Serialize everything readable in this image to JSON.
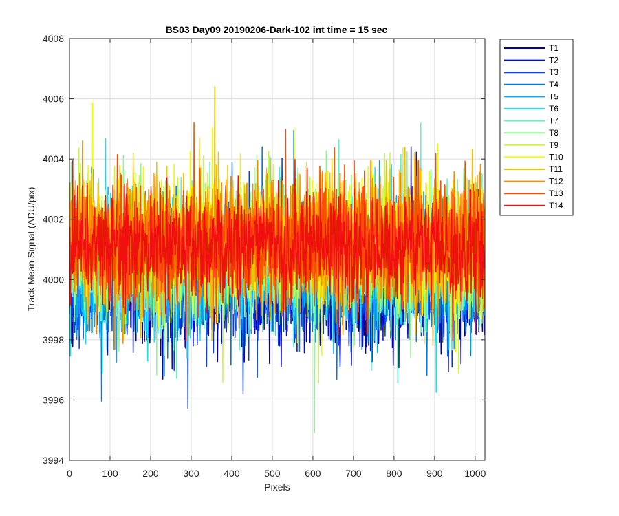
{
  "chart_data": {
    "type": "line",
    "title": "BS03 Day09 20190206-Dark-102 int time = 15 sec",
    "xlabel": "Pixels",
    "ylabel": "Track Mean Signal (ADU/pix)",
    "xlim": [
      0,
      1024
    ],
    "ylim": [
      3994,
      4008
    ],
    "xticks": [
      0,
      100,
      200,
      300,
      400,
      500,
      600,
      700,
      800,
      900,
      1000
    ],
    "yticks": [
      3994,
      3996,
      3998,
      4000,
      4002,
      4004,
      4006,
      4008
    ],
    "grid": true,
    "legend_position": "outside-top-right",
    "points_per_series": 1024,
    "series": [
      {
        "name": "T1",
        "color": "#0000b4",
        "mean": 3999.9,
        "noise": 0.95
      },
      {
        "name": "T2",
        "color": "#0010d0",
        "mean": 3999.95,
        "noise": 0.95
      },
      {
        "name": "T3",
        "color": "#0040e6",
        "mean": 4000.0,
        "noise": 0.95
      },
      {
        "name": "T4",
        "color": "#0078f0",
        "mean": 4000.1,
        "noise": 1.0
      },
      {
        "name": "T5",
        "color": "#00a8f8",
        "mean": 4000.3,
        "noise": 1.0
      },
      {
        "name": "T6",
        "color": "#10e4f0",
        "mean": 4000.6,
        "noise": 1.05
      },
      {
        "name": "T7",
        "color": "#60f4c0",
        "mean": 4000.8,
        "noise": 1.05
      },
      {
        "name": "T8",
        "color": "#90f890",
        "mean": 4001.0,
        "noise": 1.1
      },
      {
        "name": "T9",
        "color": "#c8f840",
        "mean": 4001.1,
        "noise": 1.1
      },
      {
        "name": "T10",
        "color": "#f8f800",
        "mean": 4001.15,
        "noise": 1.05
      },
      {
        "name": "T11",
        "color": "#f8c000",
        "mean": 4001.2,
        "noise": 1.05
      },
      {
        "name": "T12",
        "color": "#f88c00",
        "mean": 4001.25,
        "noise": 1.0
      },
      {
        "name": "T13",
        "color": "#f85000",
        "mean": 4001.2,
        "noise": 0.95
      },
      {
        "name": "T14",
        "color": "#f01010",
        "mean": 4001.1,
        "noise": 0.85
      }
    ]
  }
}
